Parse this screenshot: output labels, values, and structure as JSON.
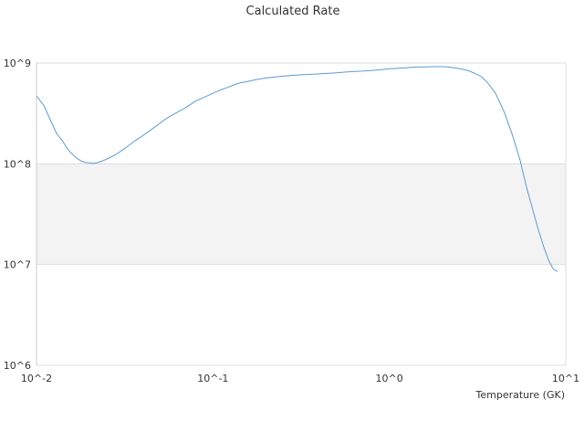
{
  "chart_data": {
    "type": "line",
    "title": "Calculated Rate",
    "xlabel": "Temperature (GK)",
    "ylabel": "",
    "x_scale": "log",
    "y_scale": "log",
    "xlim": [
      0.01,
      10
    ],
    "ylim": [
      1000000,
      1000000000
    ],
    "x_ticks": [
      0.01,
      0.1,
      1,
      10
    ],
    "x_tick_labels": [
      "10^-2",
      "10^-1",
      "10^0",
      "10^1"
    ],
    "y_ticks": [
      1000000,
      10000000,
      100000000,
      1000000000
    ],
    "y_tick_labels": [
      "10^6",
      "10^7",
      "10^8",
      "10^9"
    ],
    "grid": "horizontal",
    "alternating_bands": true,
    "legend": "none",
    "colors": {
      "series": "#5b9bd5",
      "grid": "#dddddd",
      "band": "#f3f3f3",
      "axis": "#cccccc",
      "text": "#333333"
    },
    "series": [
      {
        "x": [
          0.01,
          0.011,
          0.012,
          0.013,
          0.014,
          0.015,
          0.016,
          0.017,
          0.018,
          0.019,
          0.02,
          0.021,
          0.022,
          0.024,
          0.026,
          0.028,
          0.03,
          0.033,
          0.036,
          0.04,
          0.045,
          0.05,
          0.055,
          0.06,
          0.07,
          0.08,
          0.09,
          0.1,
          0.11,
          0.12,
          0.14,
          0.16,
          0.18,
          0.2,
          0.25,
          0.3,
          0.35,
          0.4,
          0.5,
          0.6,
          0.7,
          0.8,
          0.9,
          1.0,
          1.2,
          1.4,
          1.6,
          1.8,
          2.0,
          2.2,
          2.5,
          2.8,
          3.0,
          3.3,
          3.6,
          4.0,
          4.5,
          5.0,
          5.5,
          6.0,
          6.5,
          7.0,
          7.5,
          8.0,
          8.5,
          9.0
        ],
        "y": [
          470000000,
          380000000,
          270000000,
          200000000,
          170000000,
          140000000,
          124000000,
          113000000,
          106000000,
          103000000,
          102000000,
          101000000,
          102000000,
          108000000,
          115000000,
          123000000,
          133000000,
          150000000,
          168000000,
          190000000,
          220000000,
          252000000,
          285000000,
          310000000,
          360000000,
          420000000,
          460000000,
          500000000,
          540000000,
          570000000,
          630000000,
          660000000,
          690000000,
          710000000,
          740000000,
          760000000,
          770000000,
          780000000,
          800000000,
          820000000,
          830000000,
          845000000,
          860000000,
          875000000,
          895000000,
          910000000,
          915000000,
          920000000,
          920000000,
          910000000,
          880000000,
          840000000,
          800000000,
          740000000,
          640000000,
          500000000,
          320000000,
          190000000,
          110000000,
          58000000,
          35000000,
          22000000,
          15000000,
          11000000,
          9000000,
          8500000
        ]
      }
    ]
  }
}
